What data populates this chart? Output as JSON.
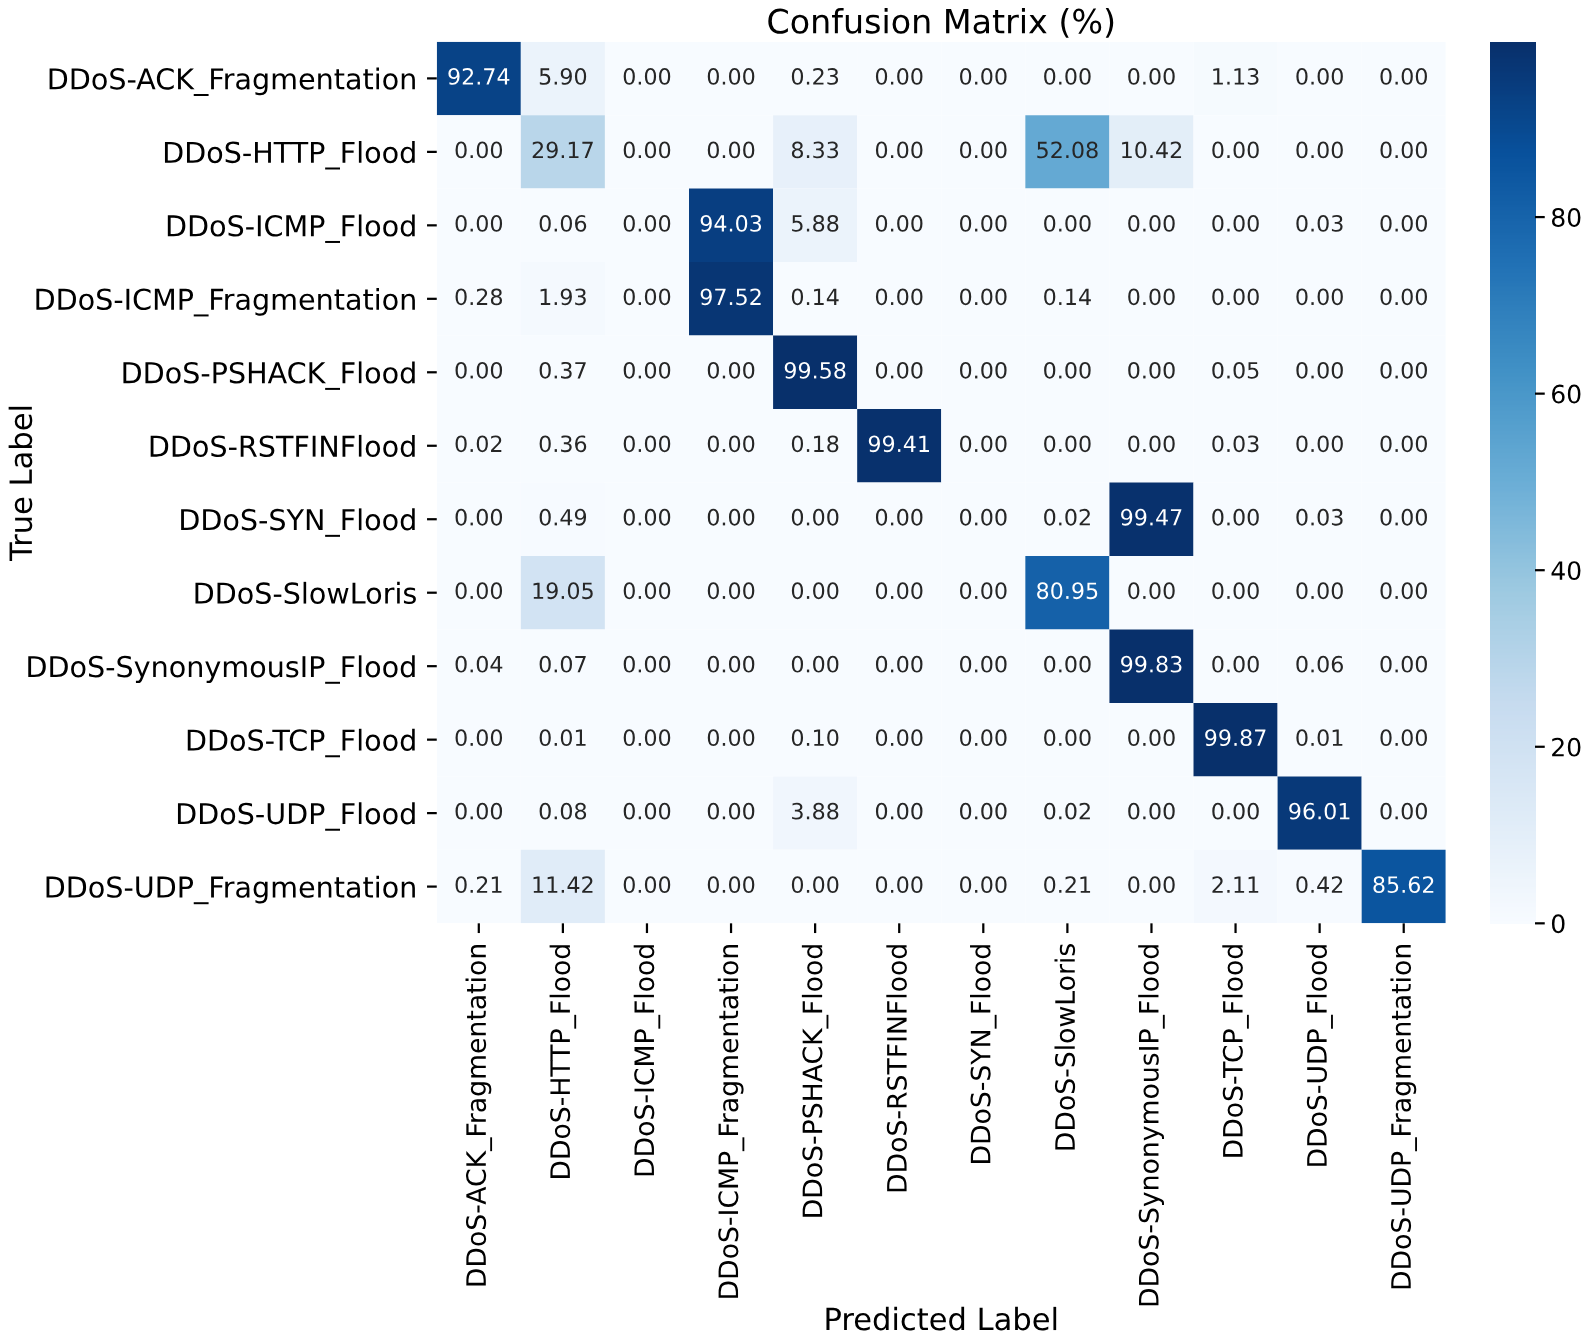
{
  "chart_data": {
    "type": "heatmap",
    "title": "Confusion Matrix (%)",
    "xlabel": "Predicted Label",
    "ylabel": "True Label",
    "categories": [
      "DDoS-ACK_Fragmentation",
      "DDoS-HTTP_Flood",
      "DDoS-ICMP_Flood",
      "DDoS-ICMP_Fragmentation",
      "DDoS-PSHACK_Flood",
      "DDoS-RSTFINFlood",
      "DDoS-SYN_Flood",
      "DDoS-SlowLoris",
      "DDoS-SynonymousIP_Flood",
      "DDoS-TCP_Flood",
      "DDoS-UDP_Flood",
      "DDoS-UDP_Fragmentation"
    ],
    "y_categories": [
      "DDoS-ACK_Fragmentation",
      "DDoS-HTTP_Flood",
      "DDoS-ICMP_Flood",
      "DDoS-ICMP_Fragmentation",
      "DDoS-PSHACK_Flood",
      "DDoS-RSTFINFlood",
      "DDoS-SYN_Flood",
      "DDoS-SlowLoris",
      "DDoS-SynonymousIP_Flood",
      "DDoS-TCP_Flood",
      "DDoS-UDP_Flood",
      "DDoS-UDP_Fragmentation"
    ],
    "cells": [
      [
        92.74,
        5.9,
        0.0,
        0.0,
        0.23,
        0.0,
        0.0,
        0.0,
        0.0,
        1.13,
        0.0,
        0.0
      ],
      [
        0.0,
        29.17,
        0.0,
        0.0,
        8.33,
        0.0,
        0.0,
        52.08,
        10.42,
        0.0,
        0.0,
        0.0
      ],
      [
        0.0,
        0.06,
        0.0,
        94.03,
        5.88,
        0.0,
        0.0,
        0.0,
        0.0,
        0.0,
        0.03,
        0.0
      ],
      [
        0.28,
        1.93,
        0.0,
        97.52,
        0.14,
        0.0,
        0.0,
        0.14,
        0.0,
        0.0,
        0.0,
        0.0
      ],
      [
        0.0,
        0.37,
        0.0,
        0.0,
        99.58,
        0.0,
        0.0,
        0.0,
        0.0,
        0.05,
        0.0,
        0.0
      ],
      [
        0.02,
        0.36,
        0.0,
        0.0,
        0.18,
        99.41,
        0.0,
        0.0,
        0.0,
        0.03,
        0.0,
        0.0
      ],
      [
        0.0,
        0.49,
        0.0,
        0.0,
        0.0,
        0.0,
        0.0,
        0.02,
        99.47,
        0.0,
        0.03,
        0.0
      ],
      [
        0.0,
        19.05,
        0.0,
        0.0,
        0.0,
        0.0,
        0.0,
        80.95,
        0.0,
        0.0,
        0.0,
        0.0
      ],
      [
        0.04,
        0.07,
        0.0,
        0.0,
        0.0,
        0.0,
        0.0,
        0.0,
        99.83,
        0.0,
        0.06,
        0.0
      ],
      [
        0.0,
        0.01,
        0.0,
        0.0,
        0.1,
        0.0,
        0.0,
        0.0,
        0.0,
        99.87,
        0.01,
        0.0
      ],
      [
        0.0,
        0.08,
        0.0,
        0.0,
        3.88,
        0.0,
        0.0,
        0.02,
        0.0,
        0.0,
        96.01,
        0.0
      ],
      [
        0.21,
        11.42,
        0.0,
        0.0,
        0.0,
        0.0,
        0.0,
        0.21,
        0.0,
        2.11,
        0.42,
        85.62
      ]
    ],
    "cell_labels": [
      [
        "92.74",
        "5.90",
        "0.00",
        "0.00",
        "0.23",
        "0.00",
        "0.00",
        "0.00",
        "0.00",
        "1.13",
        "0.00",
        "0.00"
      ],
      [
        "0.00",
        "29.17",
        "0.00",
        "0.00",
        "8.33",
        "0.00",
        "0.00",
        "52.08",
        "10.42",
        "0.00",
        "0.00",
        "0.00"
      ],
      [
        "0.00",
        "0.06",
        "0.00",
        "94.03",
        "5.88",
        "0.00",
        "0.00",
        "0.00",
        "0.00",
        "0.00",
        "0.03",
        "0.00"
      ],
      [
        "0.28",
        "1.93",
        "0.00",
        "97.52",
        "0.14",
        "0.00",
        "0.00",
        "0.14",
        "0.00",
        "0.00",
        "0.00",
        "0.00"
      ],
      [
        "0.00",
        "0.37",
        "0.00",
        "0.00",
        "99.58",
        "0.00",
        "0.00",
        "0.00",
        "0.00",
        "0.05",
        "0.00",
        "0.00"
      ],
      [
        "0.02",
        "0.36",
        "0.00",
        "0.00",
        "0.18",
        "99.41",
        "0.00",
        "0.00",
        "0.00",
        "0.03",
        "0.00",
        "0.00"
      ],
      [
        "0.00",
        "0.49",
        "0.00",
        "0.00",
        "0.00",
        "0.00",
        "0.00",
        "0.02",
        "99.47",
        "0.00",
        "0.03",
        "0.00"
      ],
      [
        "0.00",
        "19.05",
        "0.00",
        "0.00",
        "0.00",
        "0.00",
        "0.00",
        "80.95",
        "0.00",
        "0.00",
        "0.00",
        "0.00"
      ],
      [
        "0.04",
        "0.07",
        "0.00",
        "0.00",
        "0.00",
        "0.00",
        "0.00",
        "0.00",
        "99.83",
        "0.00",
        "0.06",
        "0.00"
      ],
      [
        "0.00",
        "0.01",
        "0.00",
        "0.00",
        "0.10",
        "0.00",
        "0.00",
        "0.00",
        "0.00",
        "99.87",
        "0.01",
        "0.00"
      ],
      [
        "0.00",
        "0.08",
        "0.00",
        "0.00",
        "3.88",
        "0.00",
        "0.00",
        "0.02",
        "0.00",
        "0.00",
        "96.01",
        "0.00"
      ],
      [
        "0.21",
        "11.42",
        "0.00",
        "0.00",
        "0.00",
        "0.00",
        "0.00",
        "0.21",
        "0.00",
        "2.11",
        "0.42",
        "85.62"
      ]
    ],
    "clim": [
      0,
      99.87
    ],
    "cticks": [
      0,
      20,
      40,
      60,
      80
    ]
  }
}
